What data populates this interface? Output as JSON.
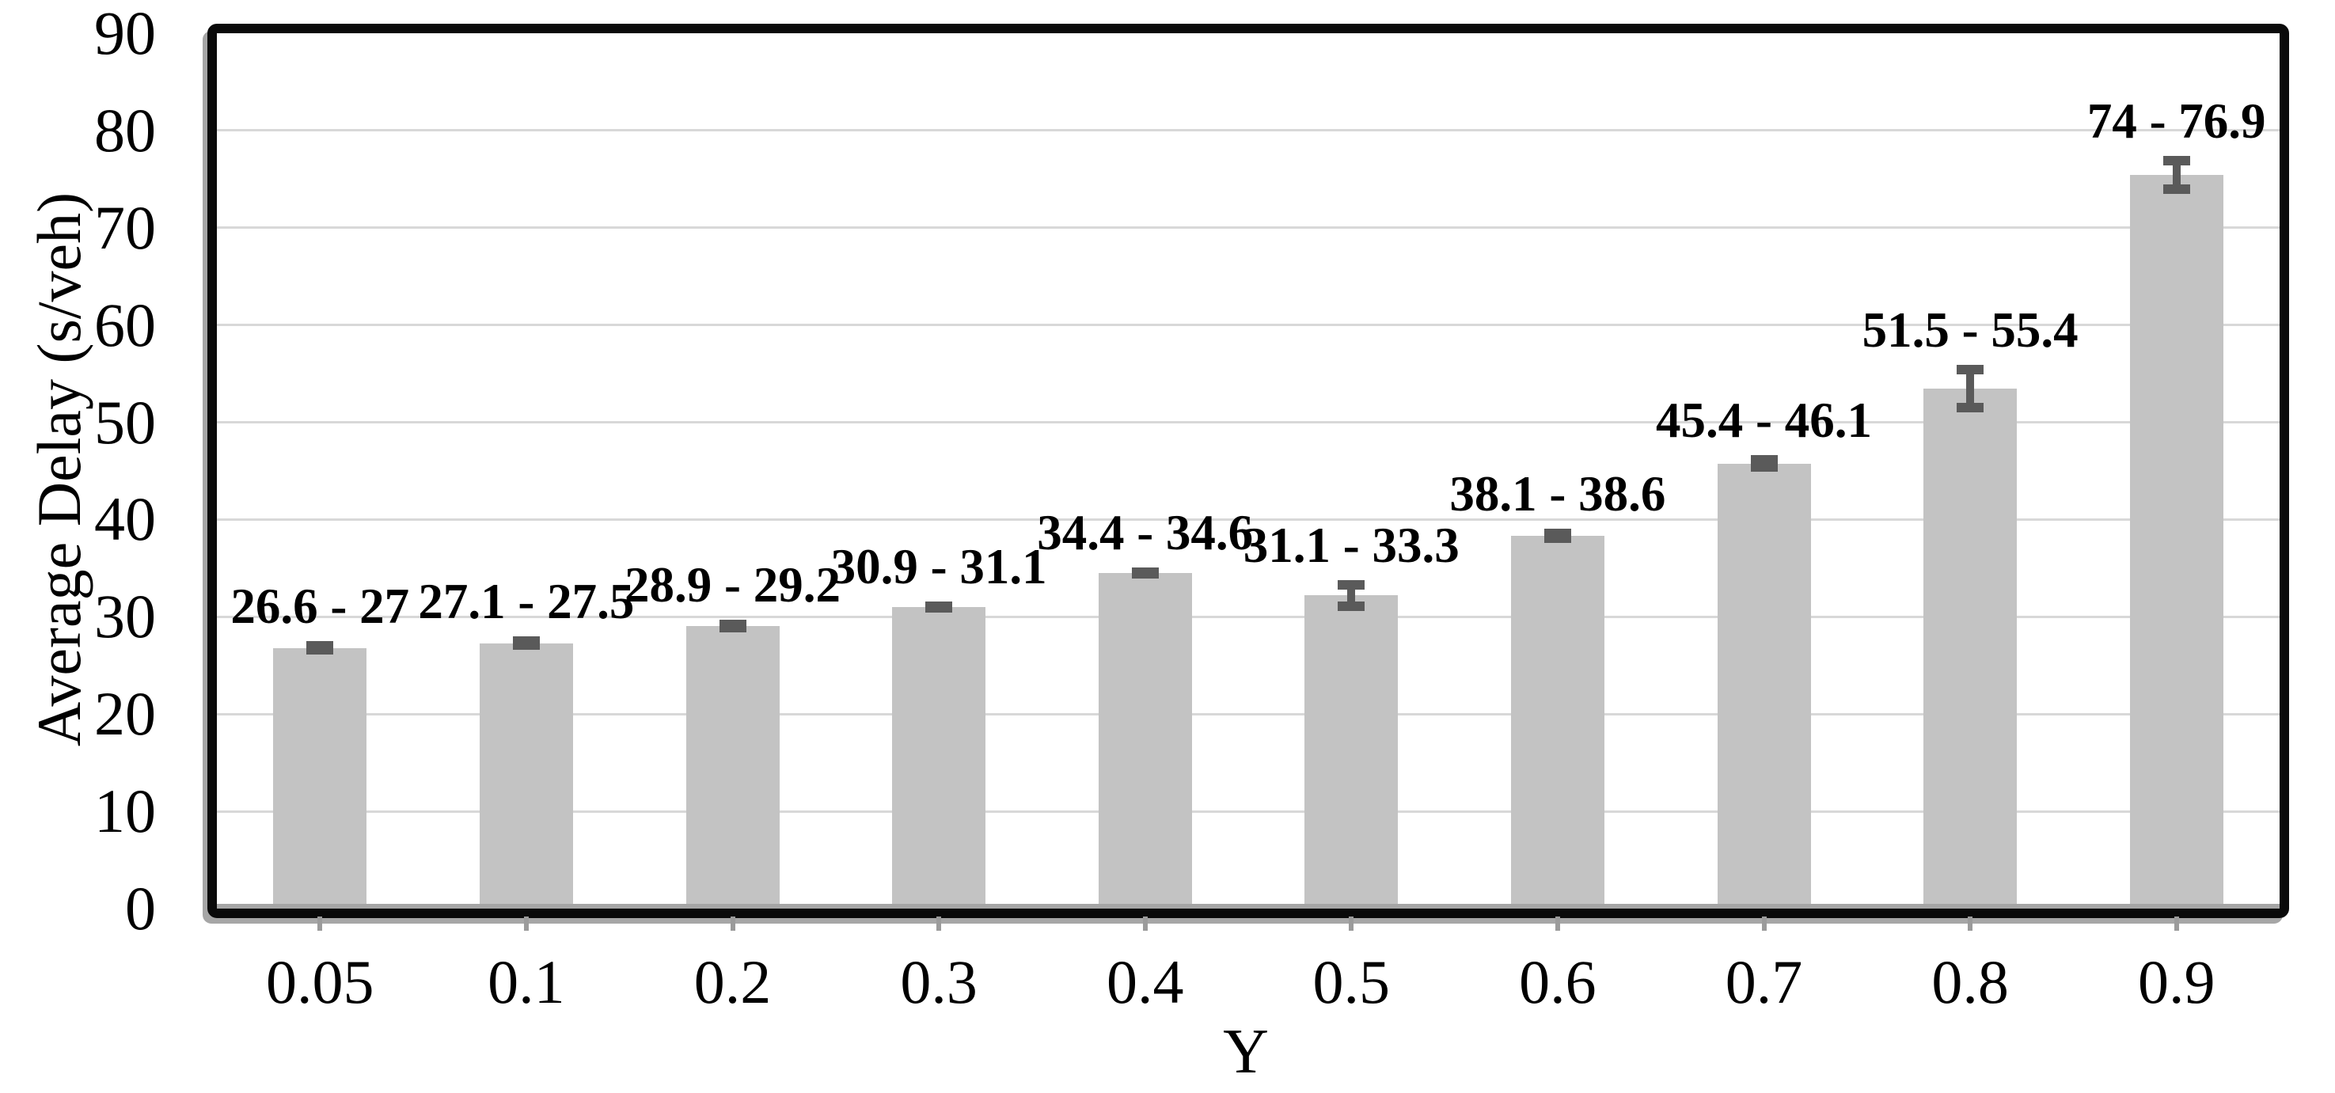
{
  "y_axis": {
    "title": "Average Delay (s/veh)",
    "tick_labels": [
      "0",
      "10",
      "20",
      "30",
      "40",
      "50",
      "60",
      "70",
      "80",
      "90"
    ],
    "min": 0,
    "max": 90
  },
  "x_axis": {
    "title": "Y",
    "tick_labels": [
      "0.05",
      "0.1",
      "0.2",
      "0.3",
      "0.4",
      "0.5",
      "0.6",
      "0.7",
      "0.8",
      "0.9"
    ]
  },
  "chart_data": {
    "type": "bar",
    "title": "",
    "xlabel": "Y",
    "ylabel": "Average Delay (s/veh)",
    "ylim": [
      0,
      90
    ],
    "ytick_step": 10,
    "grid": true,
    "legend_position": "none",
    "categories": [
      "0.05",
      "0.1",
      "0.2",
      "0.3",
      "0.4",
      "0.5",
      "0.6",
      "0.7",
      "0.8",
      "0.9"
    ],
    "series": [
      {
        "name": "Average Delay (s/veh)",
        "values": [
          26.8,
          27.3,
          29.05,
          31.0,
          34.5,
          32.2,
          38.35,
          45.75,
          53.45,
          75.45
        ]
      }
    ],
    "error_bars": {
      "min": [
        26.6,
        27.1,
        28.9,
        30.9,
        34.4,
        31.1,
        38.1,
        45.4,
        51.5,
        74.0
      ],
      "max": [
        27.0,
        27.5,
        29.2,
        31.1,
        34.6,
        33.3,
        38.6,
        46.1,
        55.4,
        76.9
      ]
    },
    "data_labels": [
      "26.6 - 27",
      "27.1 - 27.5",
      "28.9 - 29.2",
      "30.9 - 31.1",
      "34.4 - 34.6",
      "31.1 - 33.3",
      "38.1 - 38.6",
      "45.4 - 46.1",
      "51.5 - 55.4",
      "74 - 76.9"
    ],
    "colors": {
      "bar_fill": "#c3c3c3",
      "error_bar": "#5a5a5a",
      "gridline": "#d8d8d8",
      "frame": "#0a0a0a",
      "axis_line": "#a6a6a6",
      "text": "#000000"
    }
  }
}
